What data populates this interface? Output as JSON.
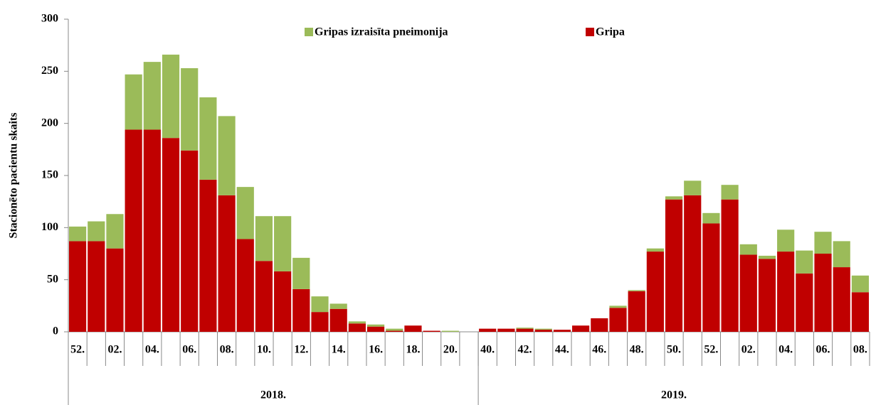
{
  "chart_data": {
    "type": "stacked-bar",
    "y_label": "Stacionēto pacientu skaits",
    "categories": [
      "52.",
      null,
      "02.",
      null,
      "04.",
      null,
      "06.",
      null,
      "08.",
      null,
      "10.",
      null,
      "12.",
      null,
      "14.",
      null,
      "16.",
      null,
      "18.",
      null,
      "20.",
      null,
      "40.",
      null,
      "42.",
      null,
      "44.",
      null,
      "46.",
      null,
      "48.",
      null,
      "50.",
      null,
      "52.",
      null,
      "02.",
      null,
      "04.",
      null,
      "06.",
      null,
      "08."
    ],
    "groups": [
      {
        "label": "2018.",
        "categories": 22
      },
      {
        "label": "2019.",
        "categories": 21
      }
    ],
    "series": [
      {
        "name": "Gripa",
        "color": "#c00000",
        "values": [
          87,
          87,
          80,
          194,
          194,
          186,
          174,
          146,
          131,
          89,
          68,
          58,
          41,
          19,
          22,
          8,
          5,
          1,
          6,
          1,
          0,
          0,
          3,
          3,
          3,
          2,
          2,
          6,
          13,
          23,
          39,
          77,
          127,
          131,
          104,
          127,
          74,
          70,
          77,
          56,
          75,
          62,
          38
        ]
      },
      {
        "name": "Gripas izraisīta pneimonija",
        "color": "#9bbb59",
        "values": [
          14,
          19,
          33,
          53,
          65,
          80,
          79,
          79,
          76,
          50,
          43,
          53,
          30,
          15,
          5,
          2,
          2,
          2,
          0,
          0,
          1,
          0,
          0,
          0,
          1,
          1,
          0,
          0,
          0,
          2,
          1,
          3,
          3,
          14,
          10,
          14,
          10,
          3,
          21,
          22,
          21,
          25,
          16
        ]
      }
    ],
    "ylim": [
      0,
      300
    ],
    "yticks": [
      0,
      50,
      100,
      150,
      200,
      250,
      300
    ],
    "grid": false
  }
}
